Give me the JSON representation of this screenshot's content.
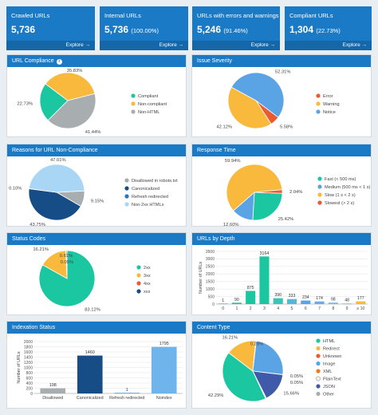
{
  "stats": [
    {
      "label": "Crawled URLs",
      "value": "5,736",
      "pct": "",
      "explore": "Explore →"
    },
    {
      "label": "Internal URLs",
      "value": "5,736",
      "pct": "(100.00%)",
      "explore": "Explore →"
    },
    {
      "label": "URLs with errors and warnings",
      "value": "5,246",
      "pct": "(91.46%)",
      "explore": "Explore →"
    },
    {
      "label": "Compliant URLs",
      "value": "1,304",
      "pct": "(22.73%)",
      "explore": "Explore →"
    }
  ],
  "panels": {
    "url_compliance": "URL Compliance",
    "issue_severity": "Issue Severity",
    "reasons": "Reasons for URL Non-Compliance",
    "response_time": "Response Time",
    "status_codes": "Status Codes",
    "urls_by_depth": "URLs by Depth",
    "indexation": "Indexation Status",
    "content_type": "Content Type"
  },
  "chart_data": [
    {
      "id": "url_compliance",
      "type": "pie",
      "slices": [
        {
          "label": "Compliant",
          "value": 22.73,
          "text": "22.73%",
          "color": "#1ac7a0"
        },
        {
          "label": "Non-compliant",
          "value": 35.83,
          "text": "35.83%",
          "color": "#f8b93c"
        },
        {
          "label": "Non-HTML",
          "value": 41.44,
          "text": "41.44%",
          "color": "#a8adb0"
        }
      ]
    },
    {
      "id": "issue_severity",
      "type": "pie",
      "slices": [
        {
          "label": "Error",
          "value": 5.58,
          "text": "5.58%",
          "color": "#eb5a30"
        },
        {
          "label": "Warning",
          "value": 42.12,
          "text": "42.12%",
          "color": "#f8b93c"
        },
        {
          "label": "Notice",
          "value": 52.31,
          "text": "52.31%",
          "color": "#5aa4e6"
        }
      ]
    },
    {
      "id": "reasons",
      "type": "pie",
      "slices": [
        {
          "label": "Disallowed in robots.txt",
          "value": 9.15,
          "text": "9.15%",
          "color": "#a8adb0"
        },
        {
          "label": "Canonicalized",
          "value": 43.75,
          "text": "43.75%",
          "color": "#164d87"
        },
        {
          "label": "Refresh redirected",
          "value": 0.1,
          "text": "0.10%",
          "color": "#2279c5"
        },
        {
          "label": "Non-2xx HTMLs",
          "value": 47.01,
          "text": "47.01%",
          "color": "#a9d6f5"
        }
      ]
    },
    {
      "id": "response_time",
      "type": "pie",
      "slices": [
        {
          "label": "Fast (< 500 ms)",
          "value": 25.42,
          "text": "25.42%",
          "color": "#1ac7a0"
        },
        {
          "label": "Medium (500 ms < 1 s)",
          "value": 12.6,
          "text": "12.60%",
          "color": "#5aa4e6"
        },
        {
          "label": "Slow (1 s < 2 s)",
          "value": 59.94,
          "text": "59.94%",
          "color": "#f8b93c"
        },
        {
          "label": "Slowest (> 2 s)",
          "value": 2.04,
          "text": "2.04%",
          "color": "#eb5a30"
        }
      ]
    },
    {
      "id": "status_codes",
      "type": "pie",
      "slices": [
        {
          "label": "2xx",
          "value": 83.12,
          "text": "83.12%",
          "color": "#1ac7a0"
        },
        {
          "label": "3xx",
          "value": 16.21,
          "text": "16.21%",
          "color": "#f8b93c"
        },
        {
          "label": "4xx",
          "value": 0.61,
          "text": "0.61%",
          "color": "#eb5a30"
        },
        {
          "label": "xxx",
          "value": 0.05,
          "text": "0.05%",
          "color": "#164d87"
        }
      ]
    },
    {
      "id": "urls_by_depth",
      "type": "bar",
      "categories": [
        "0",
        "1",
        "2",
        "3",
        "4",
        "5",
        "6",
        "7",
        "8",
        "9",
        "≥ 10"
      ],
      "values": [
        1,
        90,
        875,
        3164,
        390,
        333,
        234,
        174,
        98,
        48,
        177
      ],
      "colors": [
        "#1ac7a0",
        "#1ac7a0",
        "#1ac7a0",
        "#1ac7a0",
        "#3ac5b6",
        "#55b8d6",
        "#5aa4e6",
        "#6fa9e6",
        "#8ab6ea",
        "#a3bfe8",
        "#f8b93c"
      ],
      "ylabel": "Number of URLs",
      "ylim": [
        0,
        3500
      ],
      "yticks": [
        0,
        500,
        1000,
        1500,
        2000,
        2500,
        3000,
        3500
      ]
    },
    {
      "id": "indexation",
      "type": "bar",
      "categories": [
        "Disallowed",
        "Canonicalized",
        "Refresh redirected",
        "Noindex"
      ],
      "values": [
        198,
        1460,
        1,
        1795
      ],
      "colors": [
        "#a8adb0",
        "#164d87",
        "#2279c5",
        "#6fb4ea"
      ],
      "ylabel": "Number of URLs",
      "ylim": [
        0,
        2000
      ],
      "yticks": [
        0,
        200,
        400,
        600,
        800,
        1000,
        1200,
        1400,
        1600,
        1800,
        2000
      ]
    },
    {
      "id": "content_type",
      "type": "pie",
      "slices": [
        {
          "label": "HTML",
          "value": 42.29,
          "text": "42.29%",
          "color": "#1ac7a0"
        },
        {
          "label": "Redirect",
          "value": 16.21,
          "text": "16.21%",
          "color": "#f8b93c"
        },
        {
          "label": "Unknown",
          "value": 0.28,
          "text": "0.28%",
          "color": "#eb5a30"
        },
        {
          "label": "Image",
          "value": 25.0,
          "text": "",
          "color": "#5aa4e6"
        },
        {
          "label": "XML",
          "value": 0.05,
          "text": "0.05%",
          "color": "#f07a1a"
        },
        {
          "label": "PlainText",
          "value": 0.05,
          "text": "0.05%",
          "color": "#f2f2f2"
        },
        {
          "label": "JSON",
          "value": 15.66,
          "text": "15.66%",
          "color": "#3f5aa8"
        },
        {
          "label": "Other",
          "value": 0.46,
          "text": "",
          "color": "#a8adb0"
        }
      ]
    }
  ]
}
